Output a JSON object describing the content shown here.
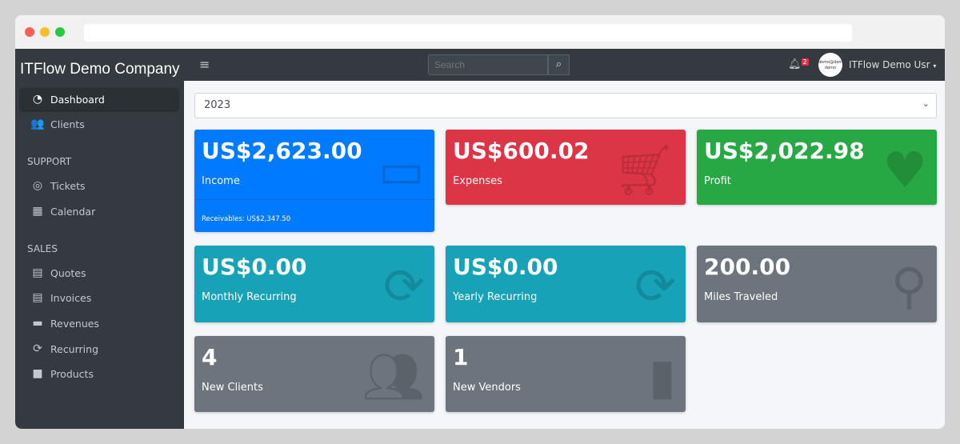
{
  "window": {
    "colors": {
      "close": "#ff5f57",
      "min": "#febc2e",
      "max": "#28c840"
    }
  },
  "sidebar": {
    "brand": "ITFlow Demo Company",
    "items": [
      {
        "label": "Dashboard",
        "icon": "tachometer-icon",
        "active": true
      },
      {
        "label": "Clients",
        "icon": "users-icon"
      }
    ],
    "sections": [
      {
        "header": "SUPPORT",
        "items": [
          {
            "label": "Tickets",
            "icon": "life-ring-icon"
          },
          {
            "label": "Calendar",
            "icon": "calendar-icon"
          }
        ]
      },
      {
        "header": "SALES",
        "items": [
          {
            "label": "Quotes",
            "icon": "file-icon"
          },
          {
            "label": "Invoices",
            "icon": "invoice-icon"
          },
          {
            "label": "Revenues",
            "icon": "credit-card-icon"
          },
          {
            "label": "Recurring",
            "icon": "sync-icon"
          },
          {
            "label": "Products",
            "icon": "box-icon"
          }
        ]
      }
    ]
  },
  "topnav": {
    "search_placeholder": "Search",
    "notifications": "2",
    "avatar_text": "demo@demo demo",
    "user": "ITFlow Demo Usr"
  },
  "year_select": "2023",
  "cards": [
    {
      "value": "US$2,623.00",
      "label": "Income",
      "footer": "Receivables: US$2,347.50",
      "color": "#007bff",
      "icon": "credit-card-icon"
    },
    {
      "value": "US$600.02",
      "label": "Expenses",
      "color": "#dc3545",
      "icon": "cart-icon"
    },
    {
      "value": "US$2,022.98",
      "label": "Profit",
      "color": "#28a745",
      "icon": "heart-icon"
    },
    {
      "value": "US$0.00",
      "label": "Monthly Recurring",
      "color": "#17a2b8",
      "icon": "sync-icon"
    },
    {
      "value": "US$0.00",
      "label": "Yearly Recurring",
      "color": "#17a2b8",
      "icon": "sync-icon"
    },
    {
      "value": "200.00",
      "label": "Miles Traveled",
      "color": "#6c757d",
      "icon": "route-icon"
    },
    {
      "value": "4",
      "label": "New Clients",
      "color": "#6c757d",
      "icon": "users-icon"
    },
    {
      "value": "1",
      "label": "New Vendors",
      "color": "#6c757d",
      "icon": "building-icon"
    }
  ]
}
